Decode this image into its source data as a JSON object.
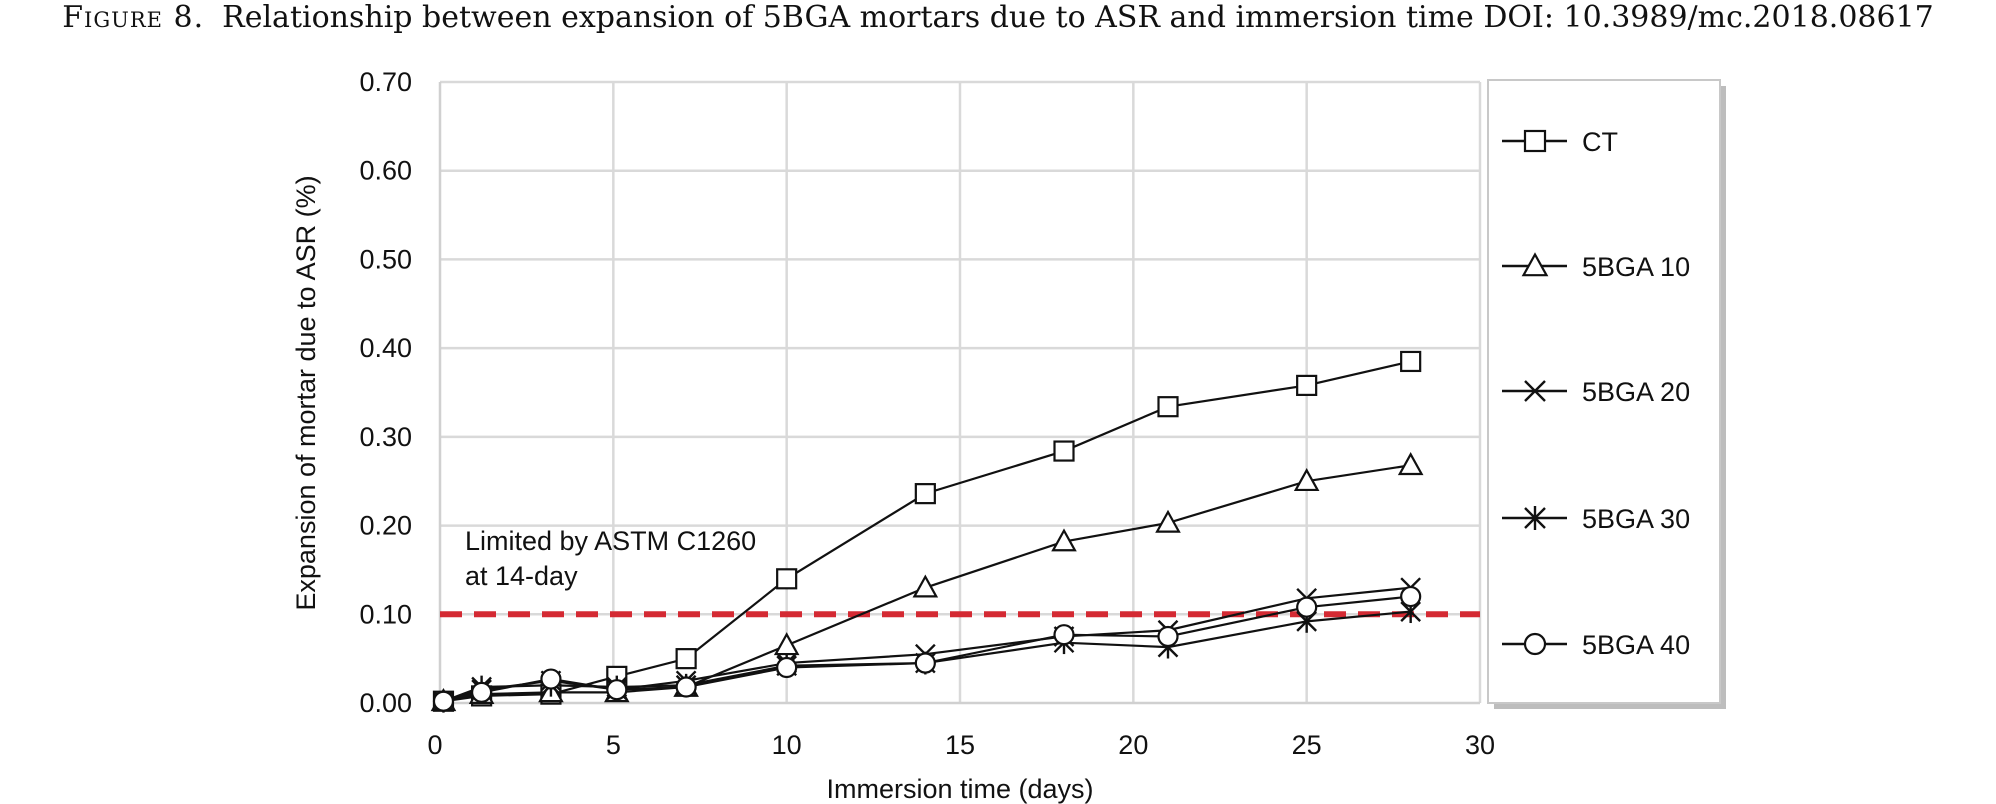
{
  "caption": {
    "label": "Figure 8.",
    "text": "Relationship between expansion of 5BGA mortars due to ASR and immersion time DOI: 10.3989/mc.2018.08617"
  },
  "chart_data": {
    "type": "line",
    "title": "",
    "xlabel": "Immersion time (days)",
    "ylabel": "Expansion of mortar due to ASR (%)",
    "xlim": [
      0,
      30
    ],
    "ylim": [
      0,
      0.7
    ],
    "xticks": [
      0,
      5,
      10,
      15,
      20,
      25,
      30
    ],
    "yticks": [
      0.0,
      0.1,
      0.2,
      0.3,
      0.4,
      0.5,
      0.6,
      0.7
    ],
    "ytick_labels": [
      "0.00",
      "0.10",
      "0.20",
      "0.30",
      "0.40",
      "0.50",
      "0.60",
      "0.70"
    ],
    "grid": true,
    "legend_position": "right",
    "series": [
      {
        "name": "CT",
        "marker": "square",
        "x": [
          0.1,
          1.2,
          3.2,
          5.1,
          7.1,
          10,
          14,
          18,
          21,
          25,
          28
        ],
        "y": [
          0.002,
          0.008,
          0.01,
          0.03,
          0.05,
          0.14,
          0.236,
          0.284,
          0.334,
          0.358,
          0.385
        ]
      },
      {
        "name": "5BGA 10",
        "marker": "triangle",
        "x": [
          0.1,
          1.2,
          3.2,
          5.1,
          7.1,
          10,
          14,
          18,
          21,
          25,
          28
        ],
        "y": [
          0.002,
          0.01,
          0.012,
          0.012,
          0.018,
          0.065,
          0.13,
          0.182,
          0.203,
          0.25,
          0.268
        ]
      },
      {
        "name": "5BGA 20",
        "marker": "x",
        "x": [
          0.1,
          1.2,
          3.2,
          5.1,
          7.1,
          10,
          14,
          18,
          21,
          25,
          28
        ],
        "y": [
          0.002,
          0.015,
          0.025,
          0.015,
          0.025,
          0.045,
          0.055,
          0.075,
          0.082,
          0.118,
          0.13
        ]
      },
      {
        "name": "5BGA 30",
        "marker": "asterisk",
        "x": [
          0.1,
          1.2,
          3.2,
          5.1,
          7.1,
          10,
          14,
          18,
          21,
          25,
          28
        ],
        "y": [
          0.002,
          0.018,
          0.02,
          0.018,
          0.02,
          0.042,
          0.045,
          0.068,
          0.063,
          0.092,
          0.103
        ]
      },
      {
        "name": "5BGA 40",
        "marker": "circle",
        "x": [
          0.1,
          1.2,
          3.2,
          5.1,
          7.1,
          10,
          14,
          18,
          21,
          25,
          28
        ],
        "y": [
          0.002,
          0.012,
          0.027,
          0.015,
          0.018,
          0.04,
          0.045,
          0.077,
          0.075,
          0.108,
          0.12
        ]
      }
    ],
    "threshold": {
      "y": 0.1,
      "color": "#d42a33",
      "style": "dashed",
      "label_lines": [
        "Limited by ASTM C1260",
        "at 14-day"
      ]
    }
  }
}
